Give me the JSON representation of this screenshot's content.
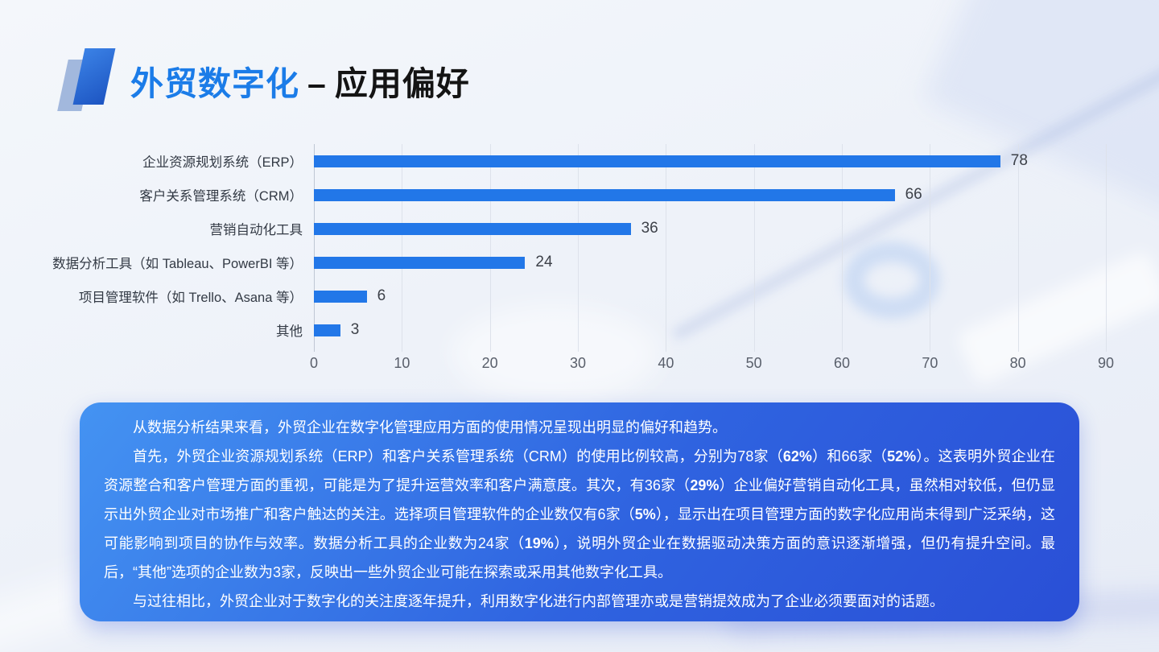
{
  "slide": {
    "title": {
      "highlight": "外贸数字化",
      "separator": "–",
      "rest": "应用偏好"
    },
    "accent_color": "#1b7ce8"
  },
  "chart_data": {
    "type": "bar",
    "orientation": "horizontal",
    "title": "",
    "xlabel": "",
    "ylabel": "",
    "categories": [
      "企业资源规划系统（ERP）",
      "客户关系管理系统（CRM）",
      "营销自动化工具",
      "数据分析工具（如 Tableau、PowerBI 等）",
      "项目管理软件（如 Trello、Asana 等）",
      "其他"
    ],
    "values": [
      78,
      66,
      36,
      24,
      6,
      3
    ],
    "xlim": [
      0,
      90
    ],
    "xticks": [
      0,
      10,
      20,
      30,
      40,
      50,
      60,
      70,
      80,
      90
    ],
    "bar_color": "#2277e8",
    "grid": true,
    "legend": "none"
  },
  "insight": {
    "gradient": [
      "#4493f2",
      "#2a4fd6"
    ],
    "paragraphs": [
      {
        "justify": false,
        "segments": [
          {
            "text": "从数据分析结果来看，外贸企业在数字化管理应用方面的使用情况呈现出明显的偏好和趋势。",
            "bold": false
          }
        ]
      },
      {
        "justify": true,
        "segments": [
          {
            "text": "首先，外贸企业资源规划系统（ERP）和客户关系管理系统（CRM）的使用比例较高，分别为78家（",
            "bold": false
          },
          {
            "text": "62%",
            "bold": true
          },
          {
            "text": "）和66家（",
            "bold": false
          },
          {
            "text": "52%",
            "bold": true
          },
          {
            "text": "）。这表明外贸企业在资源整合和客户管理方面的重视，可能是为了提升运营效率和客户满意度。其次，有36家（",
            "bold": false
          },
          {
            "text": "29%",
            "bold": true
          },
          {
            "text": "）企业偏好营销自动化工具，虽然相对较低，但仍显示出外贸企业对市场推广和客户触达的关注。选择项目管理软件的企业数仅有6家（",
            "bold": false
          },
          {
            "text": "5%",
            "bold": true
          },
          {
            "text": "），显示出在项目管理方面的数字化应用尚未得到广泛采纳，这可能影响到项目的协作与效率。数据分析工具的企业数为24家（",
            "bold": false
          },
          {
            "text": "19%",
            "bold": true
          },
          {
            "text": "），说明外贸企业在数据驱动决策方面的意识逐渐增强，但仍有提升空间。最后，“其他”选项的企业数为3家，反映出一些外贸企业可能在探索或采用其他数字化工具。",
            "bold": false
          }
        ]
      },
      {
        "justify": false,
        "segments": [
          {
            "text": "与过往相比，外贸企业对于数字化的关注度逐年提升，利用数字化进行内部管理亦或是营销提效成为了企业必须要面对的话题。",
            "bold": false
          }
        ]
      }
    ]
  }
}
